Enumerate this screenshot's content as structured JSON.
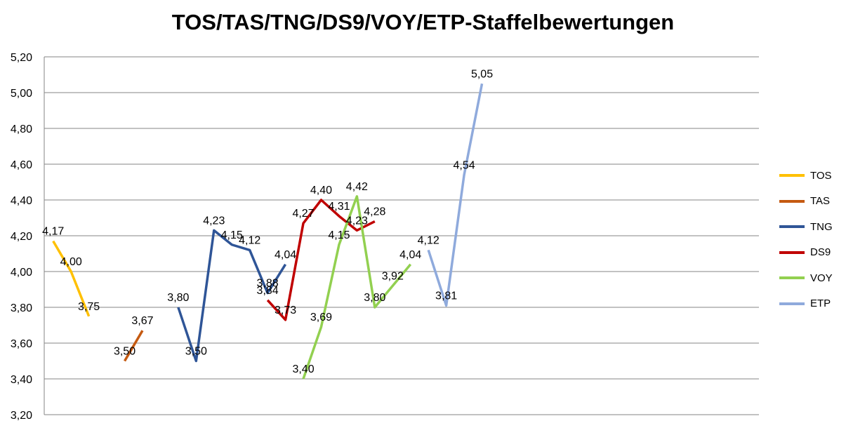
{
  "chart_data": {
    "type": "line",
    "title": "TOS/TAS/TNG/DS9/VOY/ETP-Staffelbewertungen",
    "xlabel": "",
    "ylabel": "",
    "ylim": [
      3.2,
      5.2
    ],
    "yticks": [
      "3,20",
      "3,40",
      "3,60",
      "3,80",
      "4,00",
      "4,20",
      "4,40",
      "4,60",
      "4,80",
      "5,00",
      "5,20"
    ],
    "grid": true,
    "legend_position": "right",
    "x_count": 40,
    "series": [
      {
        "name": "TOS",
        "color": "#ffc000",
        "x": [
          1,
          2,
          3
        ],
        "values": [
          4.17,
          4.0,
          3.75
        ],
        "labels": [
          "4,17",
          "4,00",
          "3,75"
        ]
      },
      {
        "name": "TAS",
        "color": "#c55a11",
        "x": [
          5,
          6
        ],
        "values": [
          3.5,
          3.67
        ],
        "labels": [
          "3,50",
          "3,67"
        ]
      },
      {
        "name": "TNG",
        "color": "#2f5597",
        "x": [
          8,
          9,
          10,
          11,
          12,
          13,
          14
        ],
        "values": [
          3.8,
          3.5,
          4.23,
          4.15,
          4.12,
          3.88,
          4.04
        ],
        "labels": [
          "3,80",
          "3,50",
          "4,23",
          "4,15",
          "4,12",
          "3,88",
          "4,04"
        ]
      },
      {
        "name": "DS9",
        "color": "#c00000",
        "x": [
          13,
          14,
          15,
          16,
          17,
          18,
          19
        ],
        "values": [
          3.84,
          3.73,
          4.27,
          4.4,
          4.31,
          4.23,
          4.28
        ],
        "labels": [
          "3,84",
          "3,73",
          "4,27",
          "4,40",
          "4,31",
          "4,23",
          "4,28"
        ]
      },
      {
        "name": "VOY",
        "color": "#92d050",
        "x": [
          15,
          16,
          17,
          18,
          19,
          20,
          21
        ],
        "values": [
          3.4,
          3.69,
          4.15,
          4.42,
          3.8,
          3.92,
          4.04
        ],
        "labels": [
          "3,40",
          "3,69",
          "4,15",
          "4,42",
          "3,80",
          "3,92",
          "4,04"
        ]
      },
      {
        "name": "ETP",
        "color": "#8faadc",
        "x": [
          22,
          23,
          24,
          25
        ],
        "values": [
          4.12,
          3.81,
          4.54,
          5.05
        ],
        "labels": [
          "4,12",
          "3,81",
          "4,54",
          "5,05"
        ]
      }
    ]
  }
}
